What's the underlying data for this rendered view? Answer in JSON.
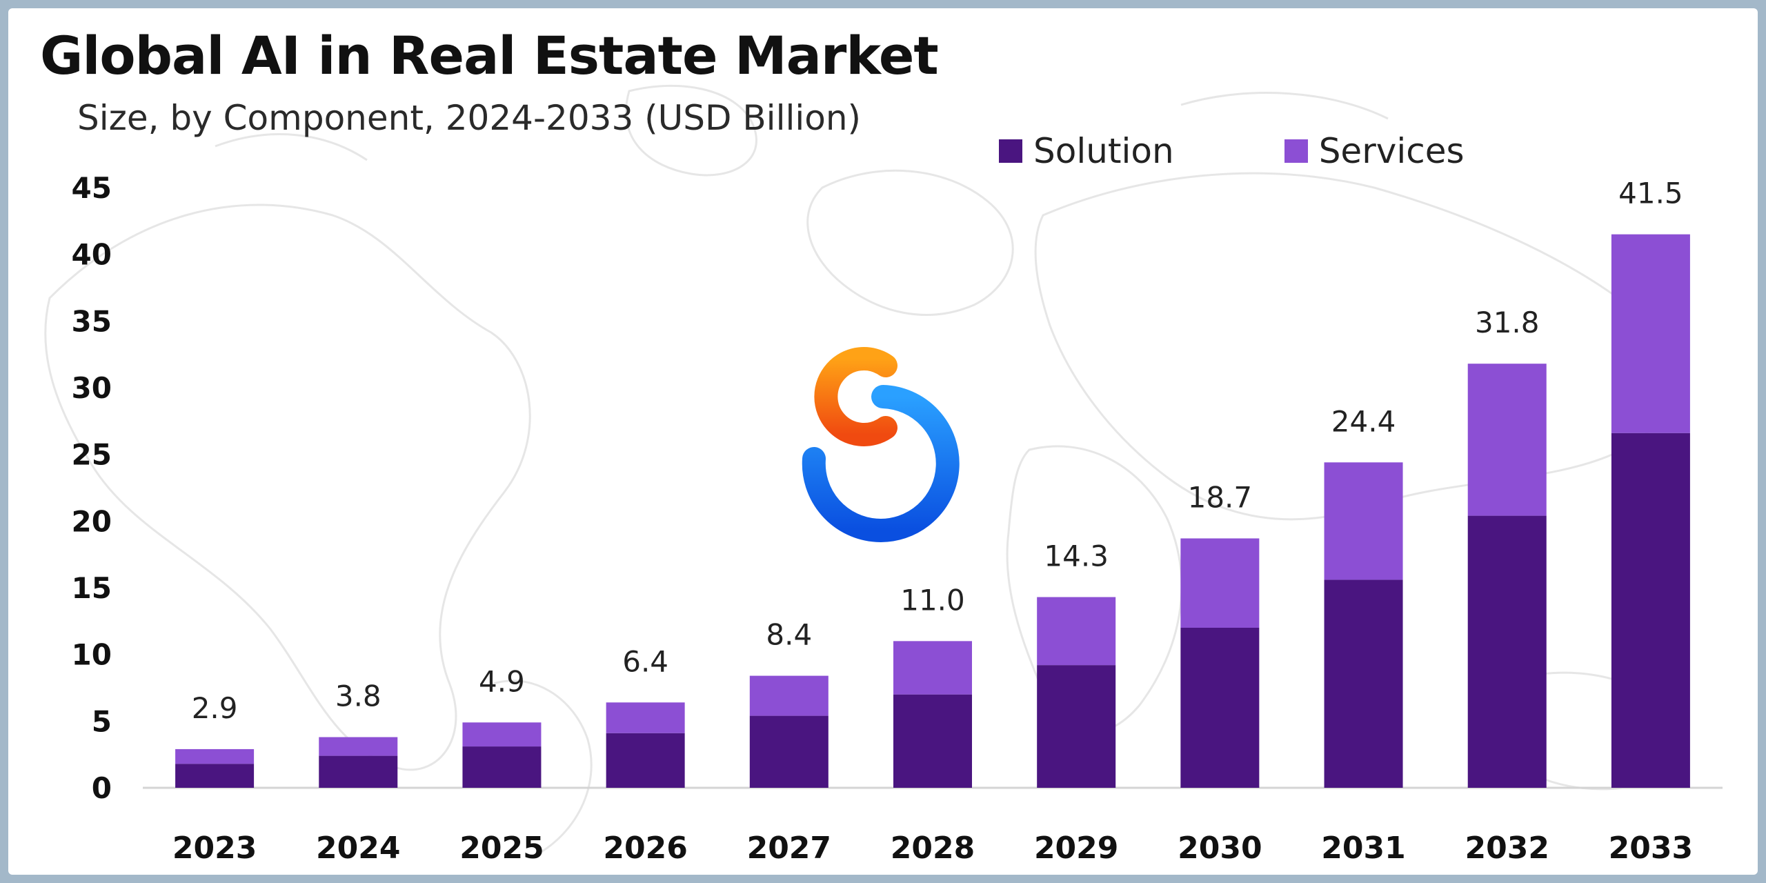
{
  "title": "Global AI in Real Estate Market",
  "subtitle": "Size, by Component, 2024-2033 (USD Billion)",
  "colors": {
    "solution": "#4a1580",
    "services": "#8c4fd4",
    "axis_text": "#111111",
    "label_text": "#222222"
  },
  "legend": [
    {
      "label": "Solution",
      "color": "#4a1580"
    },
    {
      "label": "Services",
      "color": "#8c4fd4"
    }
  ],
  "chart_data": {
    "type": "bar",
    "stacked": true,
    "categories": [
      "2023",
      "2024",
      "2025",
      "2026",
      "2027",
      "2028",
      "2029",
      "2030",
      "2031",
      "2032",
      "2033"
    ],
    "series": [
      {
        "name": "Solution",
        "values": [
          1.8,
          2.4,
          3.1,
          4.1,
          5.4,
          7.0,
          9.2,
          12.0,
          15.6,
          20.4,
          26.6
        ]
      },
      {
        "name": "Services",
        "values": [
          1.1,
          1.4,
          1.8,
          2.3,
          3.0,
          4.0,
          5.1,
          6.7,
          8.8,
          11.4,
          14.9
        ]
      }
    ],
    "totals": [
      "2.9",
      "3.8",
      "4.9",
      "6.4",
      "8.4",
      "11.0",
      "14.3",
      "18.7",
      "24.4",
      "31.8",
      "41.5"
    ],
    "y_ticks": [
      "0",
      "5",
      "10",
      "15",
      "20",
      "25",
      "30",
      "35",
      "40",
      "45"
    ],
    "ylim": [
      0,
      45
    ],
    "legend_position": "top-right",
    "grid": false
  }
}
